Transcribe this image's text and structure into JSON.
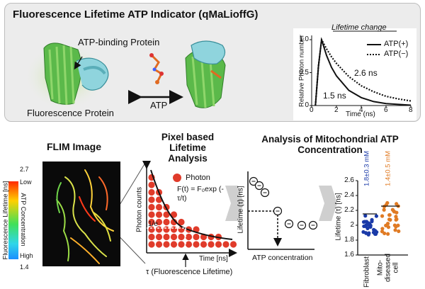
{
  "title": "Fluorescence Lifetime ATP Indicator (qMaLioffG)",
  "protein": {
    "atp_binding": "ATP-binding Protein",
    "fluorescence": "Fluorescence Protein",
    "atp": "ATP"
  },
  "decay_chart": {
    "header": "Lifetime change",
    "ylabel": "Relative Photon number",
    "xlabel": "Time (ns)",
    "legend_plus": "ATP(+)",
    "legend_minus": "ATP(−)",
    "annot_long": "2.6 ns",
    "annot_short": "1.5 ns",
    "x_ticks": [
      "0",
      "2",
      "4",
      "6",
      "8"
    ],
    "y_ticks": [
      "0",
      "0.5",
      "1.0"
    ]
  },
  "chart_data": {
    "type": "line",
    "title": "Lifetime change",
    "xlabel": "Time (ns)",
    "ylabel": "Relative Photon number",
    "xlim": [
      0,
      8
    ],
    "ylim": [
      0,
      1.0
    ],
    "legend": "top-right",
    "series": [
      {
        "name": "ATP(+)",
        "lifetime_ns": 1.5,
        "points": [
          [
            0.3,
            0
          ],
          [
            0.55,
            0.6
          ],
          [
            0.8,
            1.0
          ],
          [
            1.2,
            0.76
          ],
          [
            1.6,
            0.58
          ],
          [
            2.0,
            0.45
          ],
          [
            3.0,
            0.23
          ],
          [
            4.0,
            0.12
          ],
          [
            5.0,
            0.06
          ],
          [
            6.0,
            0.03
          ],
          [
            8.0,
            0.005
          ]
        ]
      },
      {
        "name": "ATP(−)",
        "lifetime_ns": 2.6,
        "points": [
          [
            0.3,
            0
          ],
          [
            0.55,
            0.6
          ],
          [
            0.8,
            1.0
          ],
          [
            1.2,
            0.86
          ],
          [
            1.6,
            0.74
          ],
          [
            2.0,
            0.64
          ],
          [
            3.0,
            0.44
          ],
          [
            4.0,
            0.3
          ],
          [
            5.0,
            0.21
          ],
          [
            6.0,
            0.14
          ],
          [
            7.0,
            0.1
          ],
          [
            8.0,
            0.07
          ]
        ]
      }
    ]
  },
  "flim": {
    "title": "FLIM Image",
    "cb_label": "Fluorescence Lifetime [ns]",
    "cb_max": "2.7",
    "cb_min": "1.4",
    "low": "Low",
    "high": "High",
    "atp_conc": "ATP Concentration"
  },
  "pixel": {
    "title": "Pixel based Lifetime Analysis",
    "photon": "Photon",
    "formula": "F(t) = F₀exp (-τ/t)",
    "ylabel": "Photon counts",
    "xlabel": "Time [ns]",
    "one_e": "1/e",
    "tau": "τ (Fluorescence Lifetime)"
  },
  "mito": {
    "title": "Analysis of Mitochondrial ATP Concentration",
    "ylabel": "Lifetime (τ) [ns]",
    "xlabel": "ATP concentration"
  },
  "scatter": {
    "ylabel": "Lifetime (τ) [ns]",
    "y_ticks": [
      "1.6",
      "1.8",
      "2",
      "2.2",
      "2.4",
      "2.6"
    ],
    "fib_label": "Fibroblast",
    "dis_label": "Mito-diseased cell",
    "fib_value": "1.8±0.3 mM",
    "dis_value": "1.4±0.5 mM",
    "fib_color": "#1a3aa8",
    "dis_color": "#e07b24"
  }
}
